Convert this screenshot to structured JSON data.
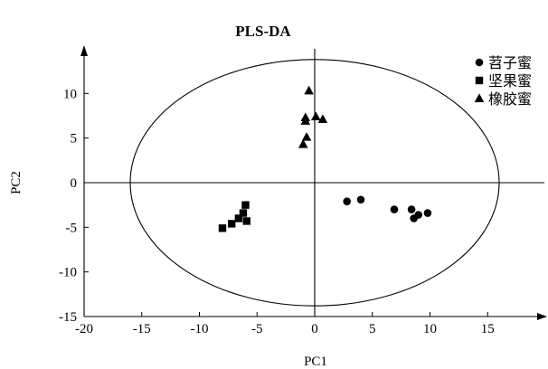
{
  "chart_data": {
    "type": "scatter",
    "title": "PLS-DA",
    "xlabel": "PC1",
    "ylabel": "PC2",
    "xlim": [
      -20,
      20
    ],
    "ylim": [
      -15,
      15
    ],
    "xticks": [
      -20,
      -15,
      -10,
      -5,
      0,
      5,
      10,
      15
    ],
    "yticks": [
      -15,
      -10,
      -5,
      0,
      5,
      10
    ],
    "grid": false,
    "legend_position": "top-right",
    "confidence_ellipse": {
      "cx": 0,
      "cy": 0,
      "rx": 16,
      "ry": 13.8
    },
    "series": [
      {
        "name": "苕子蜜",
        "marker": "circle",
        "points": [
          [
            2.8,
            -2.1
          ],
          [
            4.0,
            -1.9
          ],
          [
            6.9,
            -3.0
          ],
          [
            8.4,
            -3.0
          ],
          [
            8.6,
            -4.0
          ],
          [
            9.0,
            -3.6
          ],
          [
            9.8,
            -3.4
          ]
        ]
      },
      {
        "name": "坚果蜜",
        "marker": "square",
        "points": [
          [
            -8.0,
            -5.1
          ],
          [
            -7.2,
            -4.6
          ],
          [
            -6.6,
            -4.0
          ],
          [
            -6.2,
            -3.4
          ],
          [
            -6.0,
            -2.5
          ],
          [
            -5.9,
            -4.3
          ]
        ]
      },
      {
        "name": "橡胶蜜",
        "marker": "triangle",
        "points": [
          [
            -0.5,
            10.3
          ],
          [
            -0.8,
            7.3
          ],
          [
            -0.8,
            6.9
          ],
          [
            0.1,
            7.4
          ],
          [
            0.7,
            7.1
          ],
          [
            -0.7,
            5.1
          ],
          [
            -1.0,
            4.3
          ]
        ]
      }
    ]
  }
}
